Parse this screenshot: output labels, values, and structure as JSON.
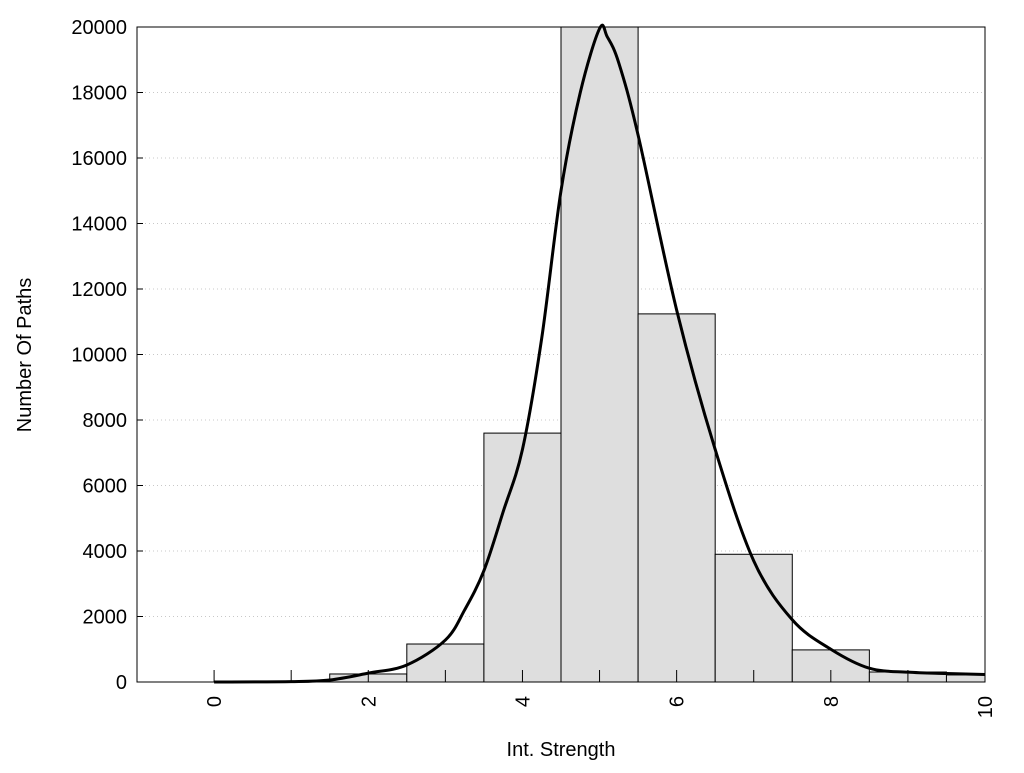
{
  "chart_data": {
    "type": "bar",
    "title": "",
    "xlabel": "Int. Strength",
    "ylabel": "Number Of Paths",
    "xlim": [
      -1,
      10
    ],
    "ylim": [
      0,
      20000
    ],
    "grid": "horizontal dotted",
    "legend": "none",
    "xticks": [
      "0",
      "2",
      "4",
      "6",
      "8",
      "10"
    ],
    "yticks": [
      "0",
      "2000",
      "4000",
      "6000",
      "8000",
      "10000",
      "12000",
      "14000",
      "16000",
      "18000",
      "20000"
    ],
    "bar_width": 1,
    "bar_color": "#dedede",
    "bars": {
      "x": [
        0,
        1,
        2,
        3,
        4,
        5,
        6,
        7,
        8,
        9,
        10
      ],
      "values": [
        0,
        0,
        245,
        1160,
        7600,
        20000,
        11240,
        3900,
        980,
        305,
        215
      ]
    },
    "curve": {
      "x": [
        0,
        1,
        1.5,
        2,
        2.5,
        3,
        3.25,
        3.5,
        3.75,
        4,
        4.25,
        4.5,
        4.75,
        5,
        5.1,
        5.25,
        5.5,
        6,
        6.5,
        7,
        7.5,
        8,
        8.5,
        9,
        9.5,
        10
      ],
      "y": [
        0,
        10,
        60,
        270,
        520,
        1280,
        2200,
        3400,
        5200,
        7100,
        10500,
        15000,
        18000,
        19950,
        19700,
        18900,
        16700,
        11360,
        7100,
        3700,
        1900,
        1000,
        420,
        300,
        260,
        230
      ],
      "color": "#000000"
    }
  }
}
